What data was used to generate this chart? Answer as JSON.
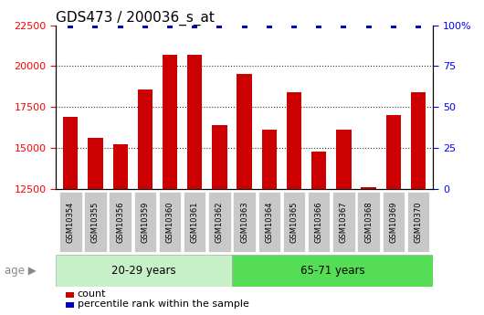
{
  "title": "GDS473 / 200036_s_at",
  "categories": [
    "GSM10354",
    "GSM10355",
    "GSM10356",
    "GSM10359",
    "GSM10360",
    "GSM10361",
    "GSM10362",
    "GSM10363",
    "GSM10364",
    "GSM10365",
    "GSM10366",
    "GSM10367",
    "GSM10368",
    "GSM10369",
    "GSM10370"
  ],
  "counts": [
    16900,
    15600,
    15250,
    18600,
    20700,
    20700,
    16400,
    19500,
    16100,
    18400,
    14800,
    16100,
    12600,
    17000,
    18400
  ],
  "group1_label": "20-29 years",
  "group2_label": "65-71 years",
  "group1_count": 7,
  "group2_count": 8,
  "ylim_left": [
    12500,
    22500
  ],
  "yticks_left": [
    12500,
    15000,
    17500,
    20000,
    22500
  ],
  "ylim_right": [
    0,
    100
  ],
  "yticks_right": [
    0,
    25,
    50,
    75,
    100
  ],
  "ytick_right_labels": [
    "0",
    "25",
    "50",
    "75",
    "100%"
  ],
  "bar_color": "#cc0000",
  "dot_color": "#0000cc",
  "group1_bg": "#c8f0c8",
  "group2_bg": "#55dd55",
  "tick_label_bg": "#c8c8c8",
  "bar_width": 0.6,
  "age_label": "age",
  "legend_count_label": "count",
  "legend_pct_label": "percentile rank within the sample",
  "title_fontsize": 11,
  "tick_fontsize": 8,
  "dot_size": 20,
  "grid_color": "#333333",
  "grid_linestyle": ":"
}
